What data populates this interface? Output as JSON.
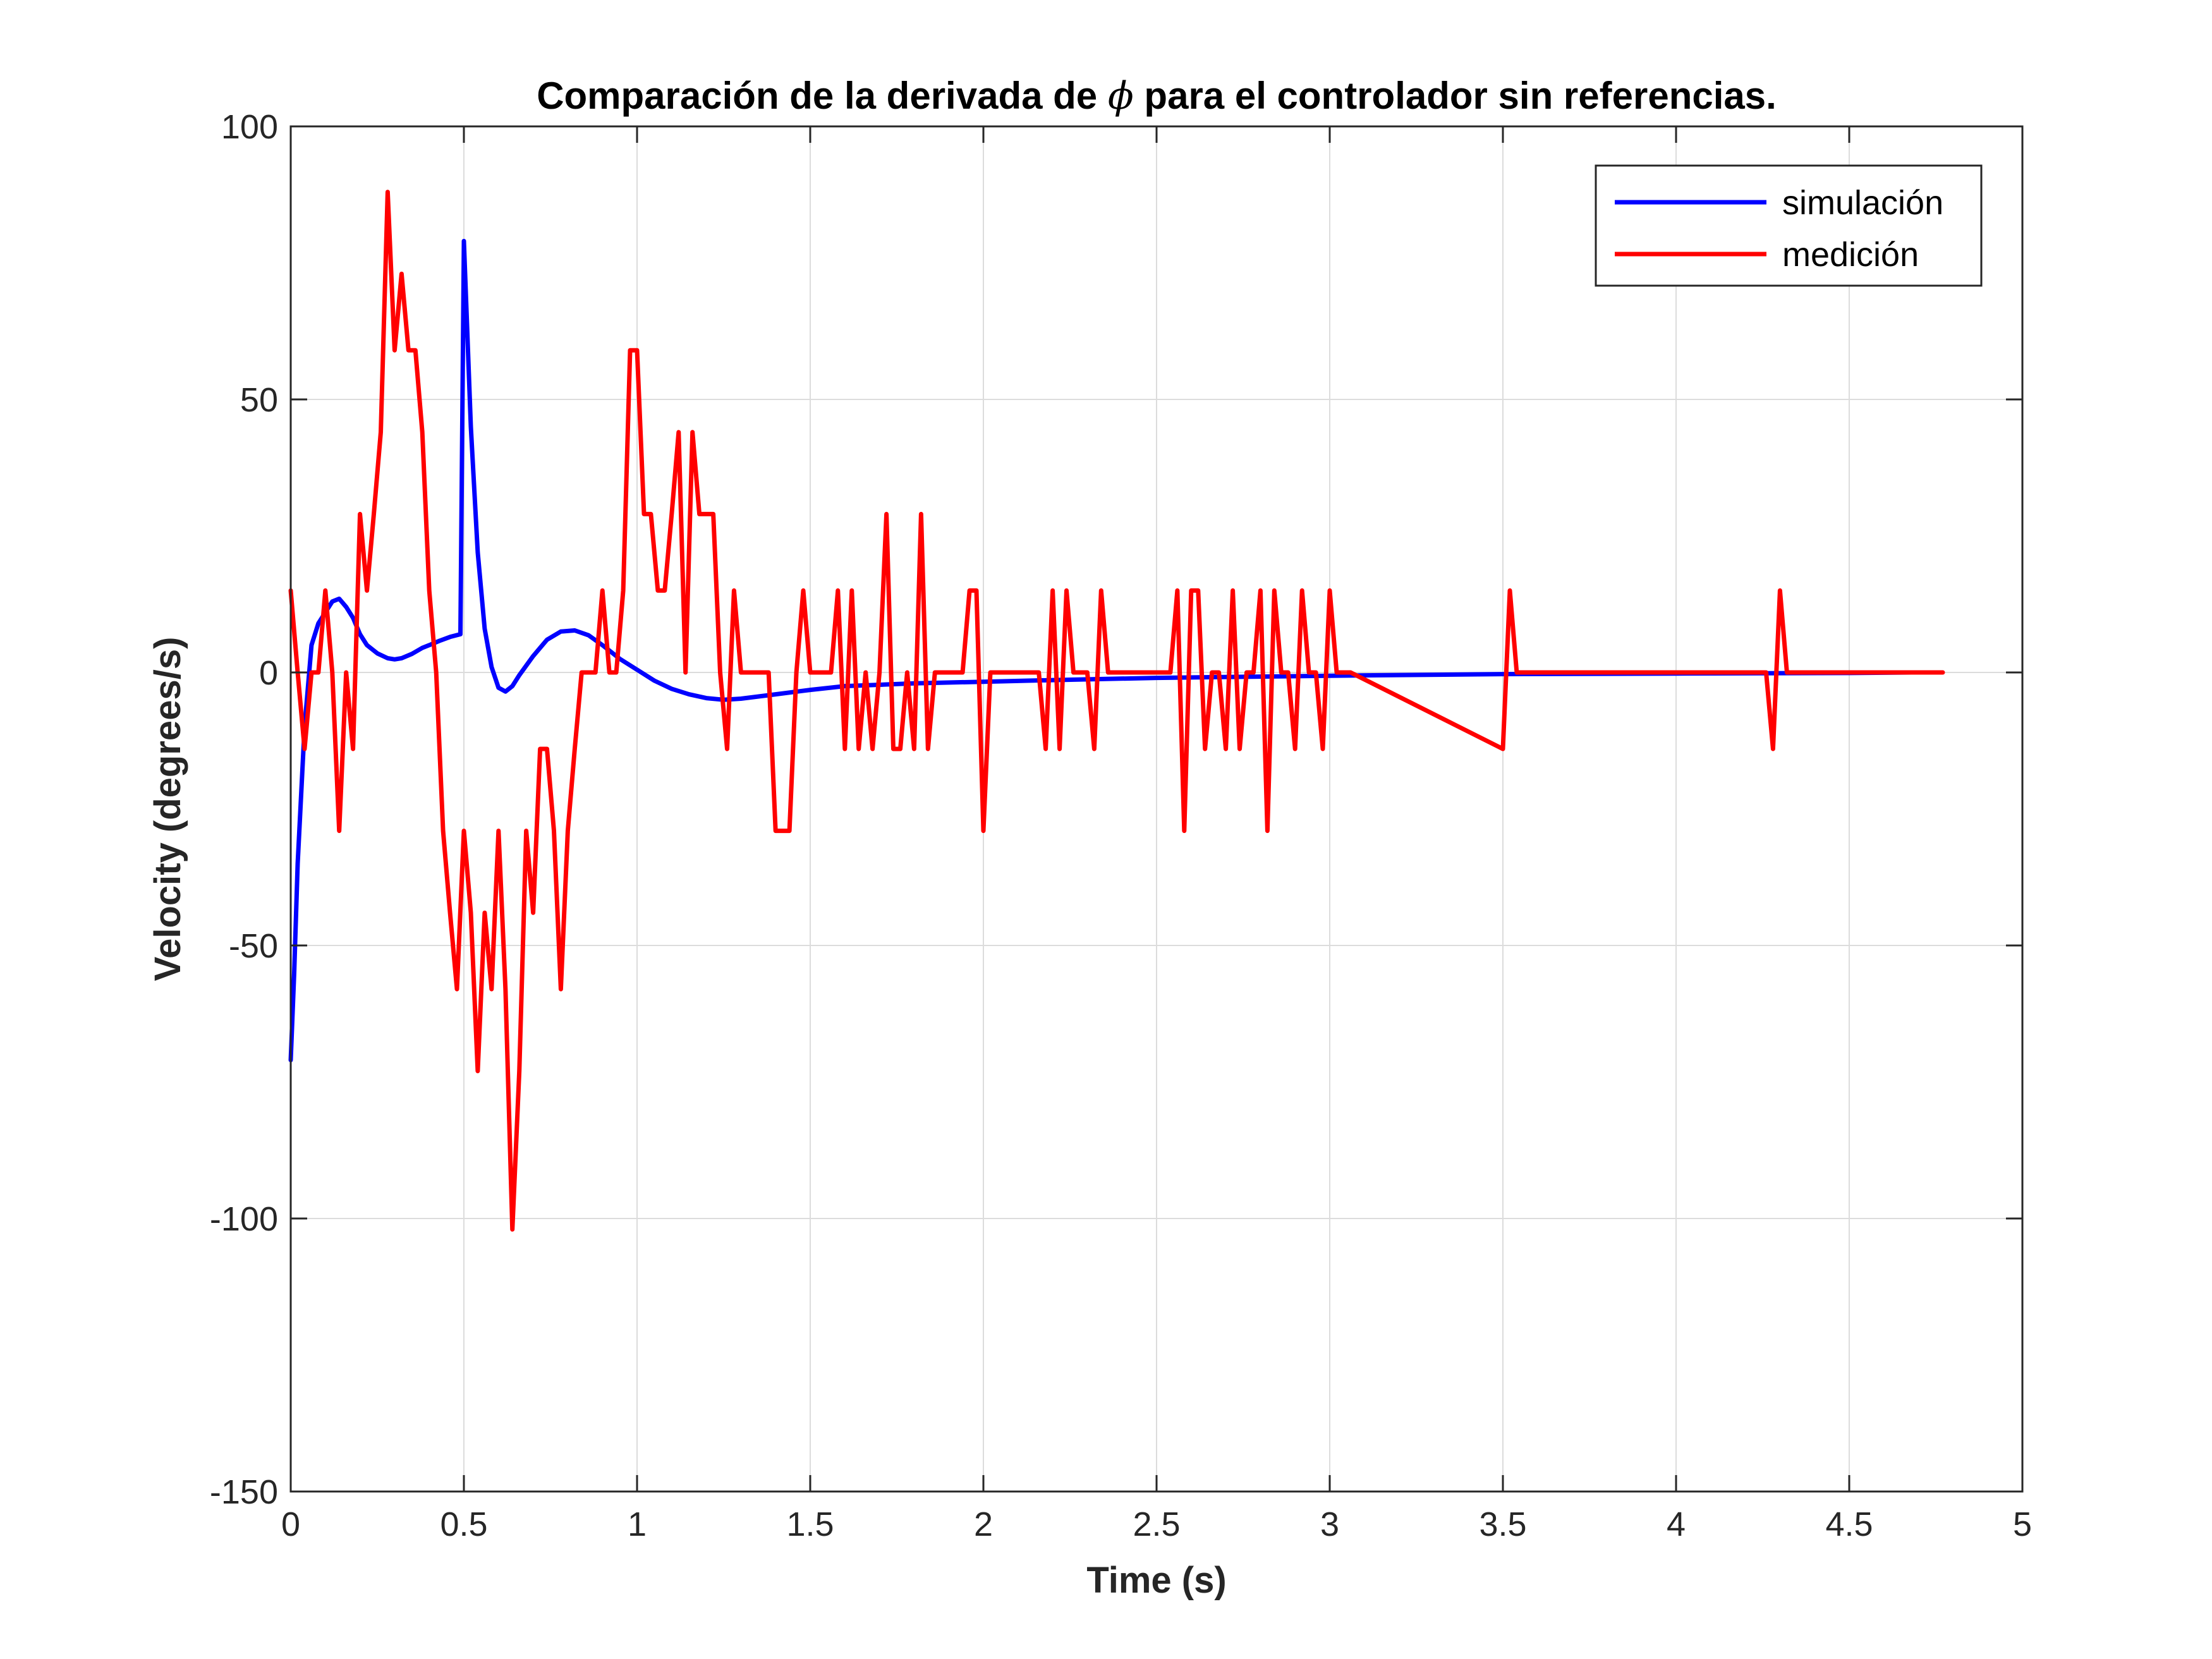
{
  "chart_data": {
    "type": "line",
    "title": "Comparación de la derivada de ϕ para el controlador sin referencias.",
    "xlabel": "Time (s)",
    "ylabel": "Velocity (degrees/s)",
    "xlim": [
      0,
      5
    ],
    "ylim": [
      -150,
      100
    ],
    "xticks": [
      0,
      0.5,
      1,
      1.5,
      2,
      2.5,
      3,
      3.5,
      4,
      4.5,
      5
    ],
    "xtick_labels": [
      "0",
      "0.5",
      "1",
      "1.5",
      "2",
      "2.5",
      "3",
      "3.5",
      "4",
      "4.5",
      "5"
    ],
    "yticks": [
      -150,
      -100,
      -50,
      0,
      50,
      100
    ],
    "ytick_labels": [
      "-150",
      "-100",
      "-50",
      "0",
      "50",
      "100"
    ],
    "grid": true,
    "legend_position": "top-right",
    "series": [
      {
        "name": "simulación",
        "color": "#0000ff",
        "x": [
          0,
          0.01,
          0.02,
          0.04,
          0.06,
          0.08,
          0.1,
          0.12,
          0.14,
          0.16,
          0.18,
          0.2,
          0.22,
          0.25,
          0.28,
          0.3,
          0.32,
          0.35,
          0.38,
          0.4,
          0.43,
          0.46,
          0.49,
          0.5,
          0.52,
          0.54,
          0.56,
          0.58,
          0.6,
          0.62,
          0.64,
          0.66,
          0.7,
          0.74,
          0.78,
          0.82,
          0.86,
          0.9,
          0.95,
          1.0,
          1.05,
          1.1,
          1.15,
          1.2,
          1.25,
          1.3,
          1.4,
          1.5,
          1.6,
          1.8,
          2.0,
          2.2,
          2.5,
          3.0,
          3.5,
          4.0,
          4.5,
          4.68
        ],
        "values": [
          -71,
          -55,
          -35,
          -10,
          5,
          9,
          11,
          13,
          13.5,
          12,
          10,
          7,
          5,
          3.5,
          2.6,
          2.4,
          2.6,
          3.4,
          4.5,
          5,
          5.8,
          6.5,
          7,
          79,
          45,
          22,
          8,
          1,
          -2.8,
          -3.5,
          -2.5,
          -0.5,
          3,
          6,
          7.5,
          7.7,
          6.8,
          5,
          2.5,
          0.5,
          -1.5,
          -3,
          -4,
          -4.7,
          -5,
          -4.8,
          -4,
          -3.2,
          -2.5,
          -2,
          -1.7,
          -1.4,
          -1,
          -0.6,
          -0.3,
          -0.2,
          -0.1,
          0
        ]
      },
      {
        "name": "medición",
        "color": "#ff0000",
        "x": [
          0,
          0.02,
          0.04,
          0.06,
          0.08,
          0.1,
          0.12,
          0.14,
          0.16,
          0.18,
          0.2,
          0.22,
          0.24,
          0.26,
          0.28,
          0.3,
          0.32,
          0.34,
          0.36,
          0.38,
          0.4,
          0.42,
          0.44,
          0.46,
          0.48,
          0.5,
          0.52,
          0.54,
          0.56,
          0.58,
          0.6,
          0.62,
          0.64,
          0.66,
          0.68,
          0.7,
          0.72,
          0.74,
          0.76,
          0.78,
          0.8,
          0.82,
          0.84,
          0.86,
          0.88,
          0.9,
          0.92,
          0.94,
          0.96,
          0.98,
          1.0,
          1.02,
          1.04,
          1.06,
          1.08,
          1.1,
          1.12,
          1.14,
          1.16,
          1.18,
          1.2,
          1.22,
          1.24,
          1.26,
          1.28,
          1.3,
          1.32,
          1.34,
          1.36,
          1.38,
          1.4,
          1.42,
          1.44,
          1.46,
          1.48,
          1.5,
          1.52,
          1.54,
          1.56,
          1.58,
          1.6,
          1.62,
          1.64,
          1.66,
          1.68,
          1.7,
          1.72,
          1.74,
          1.76,
          1.78,
          1.8,
          1.82,
          1.84,
          1.86,
          1.88,
          1.9,
          1.92,
          1.94,
          1.96,
          1.98,
          2.0,
          2.02,
          2.04,
          2.06,
          2.08,
          2.1,
          2.12,
          2.14,
          2.16,
          2.18,
          2.2,
          2.22,
          2.24,
          2.26,
          2.28,
          2.3,
          2.32,
          2.34,
          2.36,
          2.38,
          2.4,
          2.42,
          2.44,
          2.46,
          2.48,
          2.5,
          2.52,
          2.54,
          2.56,
          2.58,
          2.6,
          2.62,
          2.64,
          2.66,
          2.68,
          2.7,
          2.72,
          2.74,
          2.76,
          2.78,
          2.8,
          2.82,
          2.84,
          2.86,
          2.88,
          2.9,
          2.92,
          2.94,
          2.96,
          2.98,
          3.0,
          3.02,
          3.04,
          3.06,
          3.5,
          3.52,
          3.54,
          3.56,
          4.26,
          4.28,
          4.3,
          4.32,
          4.34,
          4.77
        ],
        "values": [
          15,
          0,
          -14,
          0,
          0,
          15,
          0,
          -29,
          0,
          -14,
          29,
          15,
          29,
          44,
          88,
          59,
          73,
          59,
          59,
          44,
          15,
          0,
          -29,
          -44,
          -58,
          -29,
          -44,
          -73,
          -44,
          -58,
          -29,
          -58,
          -102,
          -73,
          -29,
          -44,
          -14,
          -14,
          -29,
          -58,
          -29,
          -14,
          0,
          0,
          0,
          15,
          0,
          0,
          15,
          59,
          59,
          29,
          29,
          15,
          15,
          29,
          44,
          0,
          44,
          29,
          29,
          29,
          0,
          -14,
          15,
          0,
          0,
          0,
          0,
          0,
          -29,
          -29,
          -29,
          0,
          15,
          0,
          0,
          0,
          0,
          15,
          -14,
          15,
          -14,
          0,
          -14,
          0,
          29,
          -14,
          -14,
          0,
          -14,
          29,
          -14,
          0,
          0,
          0,
          0,
          0,
          15,
          15,
          -29,
          0,
          0,
          0,
          0,
          0,
          0,
          0,
          0,
          -14,
          15,
          -14,
          15,
          0,
          0,
          0,
          -14,
          15,
          0,
          0,
          0,
          0,
          0,
          0,
          0,
          0,
          0,
          0,
          15,
          -29,
          15,
          15,
          -14,
          0,
          0,
          -14,
          15,
          -14,
          0,
          0,
          15,
          -29,
          15,
          0,
          0,
          -14,
          15,
          0,
          0,
          -14,
          15,
          0,
          0,
          0,
          -14,
          15,
          0,
          0,
          0,
          -14,
          15,
          0,
          0,
          0
        ]
      }
    ]
  }
}
